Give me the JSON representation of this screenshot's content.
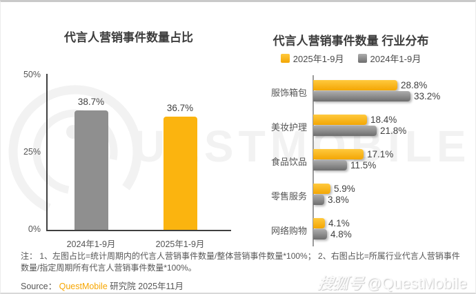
{
  "page": {
    "watermark_letters": "UESTMOBILE",
    "stamp_prefix": "搜狐号",
    "stamp_handle": "@QuestMobile"
  },
  "colors": {
    "accent_yellow": "#FBB40F",
    "bar_gray": "#8F8F8F",
    "axis_dark": "#3F3F3F",
    "brand_orange": "#F7A600"
  },
  "chart_data": [
    {
      "type": "bar",
      "orientation": "vertical",
      "title": "代言人营销事件数量占比",
      "categories": [
        "2024年1-9月",
        "2025年1-9月"
      ],
      "values": [
        38.7,
        36.7
      ],
      "labels": [
        "38.7%",
        "36.7%"
      ],
      "bar_colors": [
        "#8F8F8F",
        "#FBB40F"
      ],
      "ylim": [
        0,
        50
      ],
      "yticks": [
        {
          "value": 0,
          "label": "0%"
        },
        {
          "value": 25,
          "label": "25%"
        },
        {
          "value": 50,
          "label": "50%"
        }
      ],
      "grid": false,
      "legend_position": "none"
    },
    {
      "type": "bar",
      "orientation": "horizontal",
      "title": "代言人营销事件数量 行业分布",
      "categories": [
        "服饰箱包",
        "美妆护理",
        "食品饮品",
        "零售服务",
        "网络购物"
      ],
      "series": [
        {
          "name": "2025年1-9月",
          "color": "#FBB40F",
          "values": [
            28.8,
            18.4,
            17.1,
            5.9,
            4.1
          ],
          "labels": [
            "28.8%",
            "18.4%",
            "17.1%",
            "5.9%",
            "4.1%"
          ]
        },
        {
          "name": "2024年1-9月",
          "color": "#8C8C8C",
          "values": [
            33.2,
            21.8,
            11.5,
            3.8,
            4.8
          ],
          "labels": [
            "33.2%",
            "21.8%",
            "11.5%",
            "3.8%",
            "4.8%"
          ]
        }
      ],
      "xlim": [
        0,
        35
      ],
      "grid": false,
      "legend_position": "top"
    }
  ],
  "note": {
    "text": "注：  1、左图占比=统计周期内的代言人营销事件数量/整体营销事件数量*100%；  2、右图占比=所属行业代言人营销事件数量/指定周期所有代言人营销事件数量*100%。"
  },
  "source": {
    "label": "Source：",
    "brand": "QuestMobile",
    "suffix": " 研究院 2025年11月"
  }
}
